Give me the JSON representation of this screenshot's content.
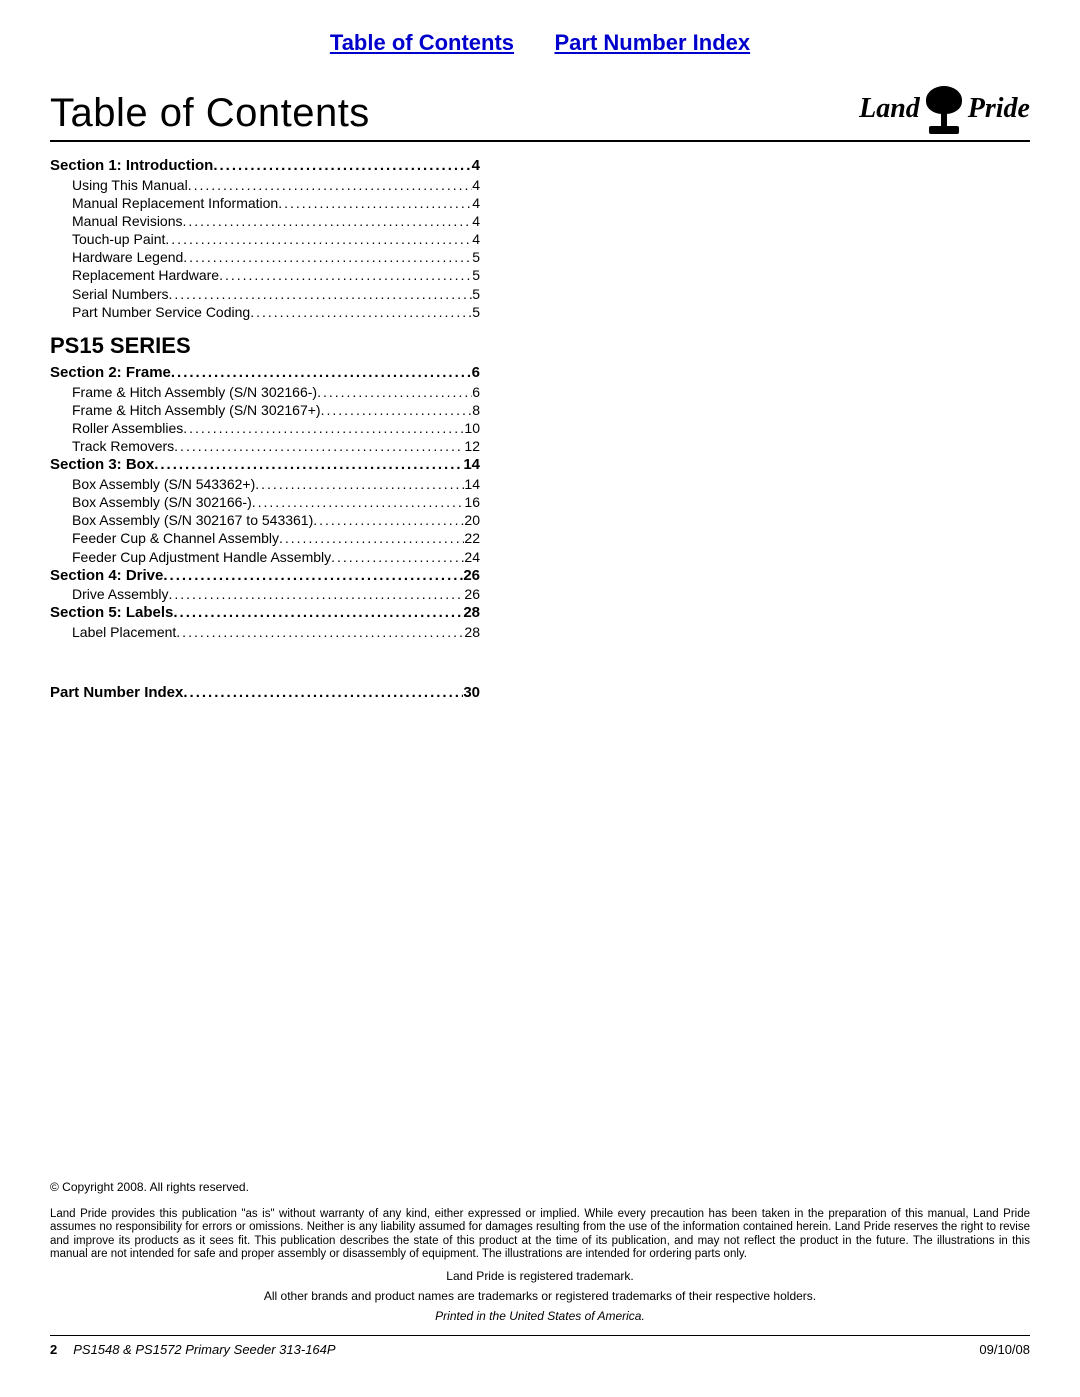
{
  "top_links": {
    "toc": "Table of Contents",
    "pni": "Part Number Index"
  },
  "page_title": "Table of Contents",
  "logo": {
    "left": "Land",
    "right": "Pride"
  },
  "series_title": "PS15 SERIES",
  "toc": {
    "section1": {
      "label": "Section 1: Introduction",
      "page": "4"
    },
    "s1": [
      {
        "label": "Using This Manual",
        "page": "4"
      },
      {
        "label": "Manual Replacement Information",
        "page": "4"
      },
      {
        "label": "Manual Revisions",
        "page": "4"
      },
      {
        "label": "Touch-up Paint",
        "page": "4"
      },
      {
        "label": "Hardware Legend",
        "page": "5"
      },
      {
        "label": "Replacement Hardware",
        "page": "5"
      },
      {
        "label": "Serial Numbers",
        "page": "5"
      },
      {
        "label": "Part Number Service Coding",
        "page": "5"
      }
    ],
    "section2": {
      "label": "Section 2: Frame",
      "page": "6"
    },
    "s2": [
      {
        "label": "Frame & Hitch Assembly (S/N 302166-)",
        "page": "6"
      },
      {
        "label": "Frame & Hitch Assembly (S/N 302167+)",
        "page": "8"
      },
      {
        "label": "Roller Assemblies",
        "page": "10"
      },
      {
        "label": "Track Removers",
        "page": "12"
      }
    ],
    "section3": {
      "label": "Section 3: Box",
      "page": "14"
    },
    "s3": [
      {
        "label": "Box Assembly (S/N 543362+)",
        "page": "14"
      },
      {
        "label": "Box Assembly (S/N 302166-)",
        "page": "16"
      },
      {
        "label": "Box Assembly (S/N 302167 to 543361)",
        "page": "20"
      },
      {
        "label": "Feeder Cup & Channel Assembly",
        "page": "22"
      },
      {
        "label": "Feeder Cup Adjustment Handle Assembly",
        "page": "24"
      }
    ],
    "section4": {
      "label": "Section 4: Drive",
      "page": "26"
    },
    "s4": [
      {
        "label": "Drive Assembly",
        "page": "26"
      }
    ],
    "section5": {
      "label": "Section 5: Labels",
      "page": "28"
    },
    "s5": [
      {
        "label": "Label Placement",
        "page": "28"
      }
    ],
    "pni": {
      "label": "Part Number Index",
      "page": "30"
    }
  },
  "footer": {
    "copyright": "© Copyright 2008. All rights reserved.",
    "disclaimer": "Land Pride provides this publication \"as is\" without warranty of any kind, either expressed or implied. While every precaution has been taken in the preparation of this manual, Land Pride assumes no responsibility for errors or omissions. Neither is any liability assumed for damages resulting from the use of the information contained herein. Land Pride reserves the right to revise and improve its products as it sees fit. This publication describes the state of this product at the time of its publication, and may not reflect the product in the future. The illustrations in this manual are not intended for safe and proper assembly or disassembly of equipment. The illustrations are intended for ordering parts only.",
    "trademark1": "Land Pride is registered trademark.",
    "trademark2": "All other brands and product names are trademarks or registered trademarks of their respective holders.",
    "printed": "Printed in the United States of America.",
    "page_num": "2",
    "doc_title": "PS1548 & PS1572 Primary Seeder 313-164P",
    "date": "09/10/08"
  },
  "colors": {
    "link": "#0000cc",
    "text": "#000000",
    "background": "#ffffff",
    "rule": "#000000"
  }
}
